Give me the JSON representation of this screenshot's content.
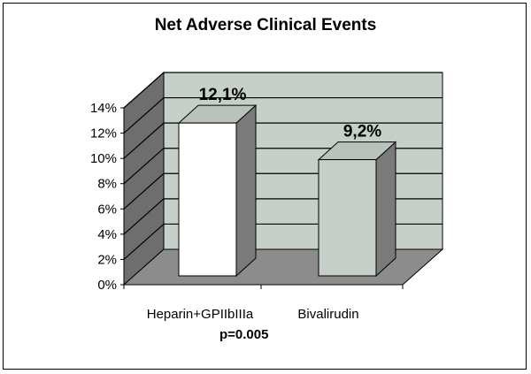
{
  "chart_data": {
    "type": "bar",
    "title": "Net Adverse Clinical Events",
    "categories": [
      "Heparin+GPIIbIIIa",
      "Bivalirudin"
    ],
    "values": [
      12.1,
      9.2
    ],
    "data_labels": [
      "12,1%",
      "9,2%"
    ],
    "ylim": [
      0,
      14
    ],
    "yticks": [
      "0%",
      "2%",
      "4%",
      "6%",
      "8%",
      "10%",
      "12%",
      "14%"
    ],
    "annotation": "p=0.005",
    "colors": {
      "back_wall": "#c6d0c8",
      "floor": "#8c8c8c",
      "side_wall": "#6e6e6e",
      "bar1": "#ffffff",
      "bar2": "#c6d0c8",
      "bar_side": "#7a7a7a",
      "bar_top": "#b9c2bb"
    }
  }
}
